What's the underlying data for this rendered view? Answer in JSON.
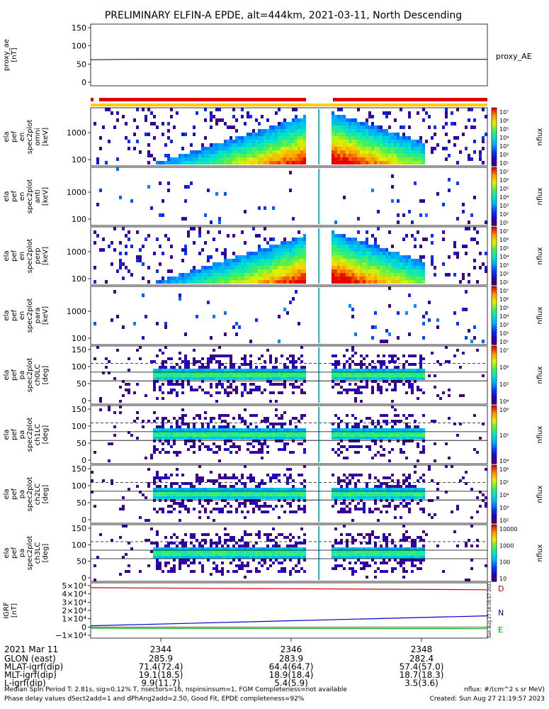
{
  "title": "PRELIMINARY ELFIN-A EPDE, alt=444km, 2021-03-11, North Descending",
  "chart_data": [
    {
      "type": "line",
      "panel": "proxy_ae",
      "ylabel_lines": [
        "proxy_ae",
        "[nT]"
      ],
      "yticks": [
        "150",
        "100",
        "50",
        "0"
      ],
      "ylim": [
        0,
        150
      ],
      "series": [
        {
          "name": "proxy_AE",
          "x": [
            "2343.0",
            "2343.6",
            "2349.0"
          ],
          "values": [
            62,
            63,
            63
          ]
        }
      ]
    },
    {
      "type": "heatmap",
      "panel": "ela_pef_en_spec2plot_omni",
      "ylabel_lines": [
        "ela",
        "pef",
        "en",
        "spec2plot",
        "omni",
        "[keV]"
      ],
      "yticks": [
        "1000",
        "100"
      ],
      "scale": "log",
      "colorbar_label": "nflux",
      "colorbar_ticks": [
        "10⁷",
        "10⁶",
        "10⁵",
        "10⁴",
        "10³",
        "10²",
        "10¹"
      ]
    },
    {
      "type": "heatmap",
      "panel": "ela_pef_en_spec2plot_anti",
      "ylabel_lines": [
        "ela",
        "pef",
        "en",
        "spec2plot",
        "anti",
        "[keV]"
      ],
      "yticks": [
        "1000",
        "100"
      ],
      "scale": "log",
      "colorbar_label": "nflux",
      "colorbar_ticks": [
        "10⁷",
        "10⁶",
        "10⁵",
        "10⁴",
        "10³",
        "10²",
        "10¹"
      ]
    },
    {
      "type": "heatmap",
      "panel": "ela_pef_en_spec2plot_perp",
      "ylabel_lines": [
        "ela",
        "pef",
        "en",
        "spec2plot",
        "perp",
        "[keV]"
      ],
      "yticks": [
        "1000",
        "100"
      ],
      "scale": "log",
      "colorbar_label": "nflux",
      "colorbar_ticks": [
        "10⁷",
        "10⁶",
        "10⁵",
        "10⁴",
        "10³",
        "10²",
        "10¹"
      ]
    },
    {
      "type": "heatmap",
      "panel": "ela_pef_en_spec2plot_para",
      "ylabel_lines": [
        "ela",
        "pef",
        "en",
        "spec2plot",
        "para",
        "[keV]"
      ],
      "yticks": [
        "1000",
        "100"
      ],
      "scale": "log",
      "colorbar_label": "nflux",
      "colorbar_ticks": [
        "10⁷",
        "10⁶",
        "10⁵",
        "10⁴",
        "10³",
        "10²",
        "10¹"
      ]
    },
    {
      "type": "heatmap",
      "panel": "ela_pef_pa_spec2plot_ch0LC",
      "ylabel_lines": [
        "ela",
        "pef",
        "pa",
        "spec2plot",
        "ch0LC",
        "[deg]"
      ],
      "yticks": [
        "150",
        "100",
        "50",
        "0"
      ],
      "ylim": [
        0,
        180
      ],
      "colorbar_label": "nflux",
      "colorbar_ticks": [
        "10⁷",
        "10⁶",
        "10⁵",
        "10⁴"
      ]
    },
    {
      "type": "heatmap",
      "panel": "ela_pef_pa_spec2plot_ch1LC",
      "ylabel_lines": [
        "ela",
        "pef",
        "pa",
        "spec2plot",
        "ch1LC",
        "[deg]"
      ],
      "yticks": [
        "150",
        "100",
        "50",
        "0"
      ],
      "ylim": [
        0,
        180
      ],
      "colorbar_label": "nflux",
      "colorbar_ticks": [
        "10⁶",
        "10⁵",
        "10⁴"
      ]
    },
    {
      "type": "heatmap",
      "panel": "ela_pef_pa_spec2plot_ch2LC",
      "ylabel_lines": [
        "ela",
        "pef",
        "pa",
        "spec2plot",
        "ch2LC",
        "[deg]"
      ],
      "yticks": [
        "150",
        "100",
        "50",
        "0"
      ],
      "ylim": [
        0,
        180
      ],
      "colorbar_label": "nflux",
      "colorbar_ticks": [
        "10⁶",
        "10⁵",
        "10⁴",
        "10³",
        "10²"
      ]
    },
    {
      "type": "heatmap",
      "panel": "ela_pef_pa_spec2plot_ch3LC",
      "ylabel_lines": [
        "ela",
        "pef",
        "pa",
        "spec2plot",
        "ch3LC",
        "[deg]"
      ],
      "yticks": [
        "150",
        "100",
        "50",
        "0"
      ],
      "ylim": [
        0,
        180
      ],
      "colorbar_label": "nflux",
      "colorbar_ticks": [
        "10000",
        "1000",
        "100",
        "10"
      ]
    },
    {
      "type": "line",
      "panel": "IGRF",
      "ylabel_lines": [
        "IGRF",
        "[nT]"
      ],
      "yticks": [
        "5×10⁴",
        "4×10⁴",
        "3×10⁴",
        "2×10⁴",
        "1×10⁴",
        "0",
        "−1×10⁴"
      ],
      "ylim": [
        -10000,
        50000
      ],
      "series": [
        {
          "name": "D",
          "x": [
            "2343.0",
            "2349.0"
          ],
          "values": [
            47500,
            45000
          ],
          "color": "#cc0000"
        },
        {
          "name": "N",
          "x": [
            "2343.0",
            "2349.0"
          ],
          "values": [
            1500,
            13500
          ],
          "color": "#0000cc"
        },
        {
          "name": "E",
          "x": [
            "2343.0",
            "2349.0"
          ],
          "values": [
            -1500,
            -2000
          ],
          "color": "#00aa00"
        }
      ]
    }
  ],
  "xaxis": {
    "date": "2021 Mar 11",
    "ticks": [
      "2344",
      "2346",
      "2348"
    ],
    "rows": [
      {
        "label": "GLON (east)",
        "values": [
          "285.9",
          "283.9",
          "282.4"
        ]
      },
      {
        "label": "MLAT-igrf(dip)",
        "values": [
          "71.4(72.4)",
          "64.4(64.7)",
          "57.4(57.0)"
        ]
      },
      {
        "label": "MLT-igrf(dip)",
        "values": [
          "19.1(18.5)",
          "18.9(18.4)",
          "18.7(18.3)"
        ]
      },
      {
        "label": "L-igrf(dip)",
        "values": [
          "9.9(11.7)",
          "5.4(5.9)",
          "3.5(3.6)"
        ]
      }
    ]
  },
  "footer": {
    "line1": "Median Spin Period T: 2.81s, sig=0.12% T, nsectors=16, nspinsinsum=1, FGM Completeness=not available",
    "line2": "Phase delay values dSect2add=1 and dPhAng2add=2.50, Good Fit, EPDE completeness=92%",
    "units": "nflux: #/(cm^2 s sr MeV)",
    "created": "Created: Sun Aug 27 21:19:57 2023",
    "side_stamp": "Sun Aug 27 14:18:57 2023"
  },
  "colors": {
    "red_bar": "#dd0000",
    "yellow_bar": "#ffcc00"
  }
}
